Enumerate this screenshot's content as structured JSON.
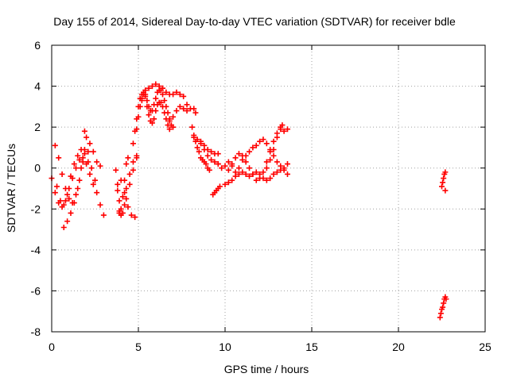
{
  "chart_data": {
    "type": "scatter",
    "title": "Day 155 of 2014, Sidereal Day-to-day VTEC variation (SDTVAR) for receiver bdle",
    "xlabel": "GPS time / hours",
    "ylabel": "SDTVAR / TECUs",
    "xlim": [
      0,
      25
    ],
    "ylim": [
      -8,
      6
    ],
    "xticks": [
      "0",
      "5",
      "10",
      "15",
      "20",
      "25"
    ],
    "yticks": [
      "-8",
      "-6",
      "-4",
      "-2",
      "0",
      "2",
      "4",
      "6"
    ],
    "grid": true,
    "marker": "+",
    "color": "#ff0000",
    "series": [
      {
        "points": [
          [
            0.0,
            -0.5
          ],
          [
            0.2,
            -1.2
          ],
          [
            0.4,
            -1.7
          ],
          [
            0.6,
            -1.9
          ],
          [
            0.8,
            -1.6
          ],
          [
            1.0,
            -1.0
          ],
          [
            1.2,
            -0.5
          ],
          [
            1.4,
            0.0
          ],
          [
            1.6,
            0.4
          ],
          [
            1.8,
            0.5
          ],
          [
            2.0,
            0.2
          ],
          [
            2.2,
            -0.3
          ],
          [
            2.4,
            -0.8
          ],
          [
            2.6,
            -1.2
          ],
          [
            2.8,
            -1.8
          ],
          [
            3.0,
            -2.3
          ],
          [
            0.2,
            1.1
          ],
          [
            0.4,
            0.5
          ],
          [
            0.6,
            -0.3
          ],
          [
            0.8,
            -1.0
          ],
          [
            1.0,
            -1.5
          ],
          [
            1.2,
            -1.7
          ],
          [
            1.4,
            -1.3
          ],
          [
            1.6,
            -0.6
          ],
          [
            1.8,
            0.3
          ],
          [
            1.9,
            0.9
          ],
          [
            2.0,
            1.5
          ],
          [
            2.2,
            1.2
          ],
          [
            2.4,
            0.8
          ],
          [
            2.6,
            0.3
          ],
          [
            2.8,
            0.1
          ],
          [
            0.7,
            -2.9
          ],
          [
            0.9,
            -2.6
          ],
          [
            1.1,
            -2.2
          ],
          [
            1.3,
            -1.7
          ],
          [
            1.5,
            -1.0
          ],
          [
            1.7,
            0.0
          ],
          [
            1.9,
            1.8
          ],
          [
            2.1,
            0.8
          ],
          [
            2.3,
            0.0
          ],
          [
            2.5,
            -0.6
          ],
          [
            0.3,
            -0.9
          ],
          [
            0.5,
            -1.6
          ],
          [
            0.7,
            -1.8
          ],
          [
            0.9,
            -1.3
          ],
          [
            1.1,
            -0.4
          ],
          [
            1.3,
            0.2
          ],
          [
            1.5,
            0.6
          ],
          [
            1.7,
            0.9
          ],
          [
            1.9,
            0.7
          ],
          [
            2.1,
            0.3
          ],
          [
            3.7,
            -0.1
          ],
          [
            3.8,
            -0.8
          ],
          [
            3.9,
            -1.6
          ],
          [
            4.0,
            -2.0
          ],
          [
            4.1,
            -1.4
          ],
          [
            4.2,
            -0.6
          ],
          [
            4.3,
            0.2
          ],
          [
            4.4,
            0.5
          ],
          [
            3.8,
            -1.1
          ],
          [
            3.9,
            -2.1
          ],
          [
            4.0,
            -2.3
          ],
          [
            4.2,
            -1.8
          ],
          [
            4.3,
            -1.0
          ],
          [
            4.5,
            -0.3
          ],
          [
            4.7,
            0.3
          ],
          [
            4.9,
            0.6
          ],
          [
            3.9,
            -2.2
          ],
          [
            4.1,
            -2.2
          ],
          [
            4.3,
            -1.5
          ],
          [
            4.5,
            -0.8
          ],
          [
            4.7,
            -0.1
          ],
          [
            4.9,
            0.5
          ],
          [
            4.0,
            -0.6
          ],
          [
            4.2,
            -1.2
          ],
          [
            4.4,
            -1.9
          ],
          [
            4.6,
            -2.3
          ],
          [
            4.8,
            -2.4
          ],
          [
            4.7,
            1.2
          ],
          [
            4.8,
            1.8
          ],
          [
            4.9,
            2.4
          ],
          [
            5.0,
            3.0
          ],
          [
            5.1,
            3.4
          ],
          [
            5.2,
            3.6
          ],
          [
            5.3,
            3.7
          ],
          [
            5.4,
            3.5
          ],
          [
            5.5,
            3.0
          ],
          [
            5.6,
            2.6
          ],
          [
            5.7,
            2.3
          ],
          [
            5.8,
            2.2
          ],
          [
            5.9,
            2.4
          ],
          [
            6.0,
            2.8
          ],
          [
            6.1,
            3.1
          ],
          [
            6.2,
            3.2
          ],
          [
            6.3,
            3.2
          ],
          [
            6.4,
            3.0
          ],
          [
            6.5,
            2.7
          ],
          [
            6.6,
            2.4
          ],
          [
            6.7,
            2.1
          ],
          [
            6.8,
            1.9
          ],
          [
            4.9,
            1.9
          ],
          [
            5.0,
            2.5
          ],
          [
            5.1,
            3.0
          ],
          [
            5.2,
            3.4
          ],
          [
            5.3,
            3.6
          ],
          [
            5.4,
            3.6
          ],
          [
            5.5,
            3.3
          ],
          [
            5.6,
            3.0
          ],
          [
            5.7,
            2.8
          ],
          [
            5.8,
            2.8
          ],
          [
            5.9,
            3.1
          ],
          [
            6.0,
            3.4
          ],
          [
            6.1,
            3.7
          ],
          [
            6.2,
            3.8
          ],
          [
            6.3,
            3.8
          ],
          [
            6.4,
            3.6
          ],
          [
            6.5,
            3.3
          ],
          [
            6.6,
            3.0
          ],
          [
            6.7,
            2.7
          ],
          [
            6.8,
            2.4
          ],
          [
            6.9,
            2.1
          ],
          [
            7.0,
            2.0
          ],
          [
            5.2,
            3.3
          ],
          [
            5.4,
            3.8
          ],
          [
            5.6,
            3.9
          ],
          [
            5.8,
            4.0
          ],
          [
            6.0,
            4.1
          ],
          [
            6.2,
            4.0
          ],
          [
            6.4,
            3.9
          ],
          [
            6.6,
            3.7
          ],
          [
            6.8,
            3.6
          ],
          [
            7.0,
            3.6
          ],
          [
            7.2,
            3.7
          ],
          [
            7.4,
            3.6
          ],
          [
            7.6,
            3.5
          ],
          [
            7.8,
            3.1
          ],
          [
            6.8,
            2.3
          ],
          [
            7.0,
            2.5
          ],
          [
            7.2,
            2.8
          ],
          [
            7.4,
            3.0
          ],
          [
            7.6,
            2.9
          ],
          [
            7.8,
            2.8
          ],
          [
            8.0,
            2.9
          ],
          [
            8.2,
            2.9
          ],
          [
            8.3,
            2.7
          ],
          [
            8.1,
            2.0
          ],
          [
            8.2,
            1.6
          ],
          [
            8.3,
            1.3
          ],
          [
            8.4,
            1.0
          ],
          [
            8.5,
            0.8
          ],
          [
            8.6,
            0.5
          ],
          [
            8.7,
            0.4
          ],
          [
            8.8,
            0.3
          ],
          [
            8.9,
            0.2
          ],
          [
            9.0,
            0.0
          ],
          [
            9.1,
            -0.1
          ],
          [
            8.2,
            1.5
          ],
          [
            8.4,
            1.4
          ],
          [
            8.6,
            1.3
          ],
          [
            8.8,
            1.1
          ],
          [
            9.0,
            0.9
          ],
          [
            9.2,
            0.8
          ],
          [
            9.4,
            0.7
          ],
          [
            9.6,
            0.7
          ],
          [
            8.6,
            1.2
          ],
          [
            8.8,
            0.9
          ],
          [
            9.0,
            0.6
          ],
          [
            9.2,
            0.4
          ],
          [
            9.4,
            0.3
          ],
          [
            9.6,
            0.2
          ],
          [
            9.3,
            -1.3
          ],
          [
            9.4,
            -1.2
          ],
          [
            9.5,
            -1.1
          ],
          [
            9.6,
            -1.0
          ],
          [
            9.7,
            -0.9
          ],
          [
            9.6,
            0.2
          ],
          [
            9.8,
            0.0
          ],
          [
            10.0,
            0.1
          ],
          [
            10.2,
            0.3
          ],
          [
            10.4,
            0.1
          ],
          [
            10.6,
            -0.2
          ],
          [
            10.8,
            -0.3
          ],
          [
            11.0,
            -0.2
          ],
          [
            11.2,
            -0.3
          ],
          [
            11.4,
            -0.4
          ],
          [
            11.6,
            -0.3
          ],
          [
            11.8,
            -0.2
          ],
          [
            12.0,
            -0.3
          ],
          [
            12.2,
            -0.5
          ],
          [
            12.4,
            -0.6
          ],
          [
            12.6,
            -0.5
          ],
          [
            12.8,
            -0.3
          ],
          [
            13.0,
            -0.2
          ],
          [
            13.2,
            -0.1
          ],
          [
            13.4,
            0.0
          ],
          [
            13.6,
            0.2
          ],
          [
            10.0,
            -0.8
          ],
          [
            10.2,
            -0.7
          ],
          [
            10.4,
            -0.6
          ],
          [
            10.6,
            -0.4
          ],
          [
            10.8,
            0.0
          ],
          [
            11.0,
            0.4
          ],
          [
            11.2,
            0.6
          ],
          [
            11.4,
            0.8
          ],
          [
            11.6,
            1.0
          ],
          [
            11.8,
            1.1
          ],
          [
            12.0,
            1.3
          ],
          [
            12.2,
            1.4
          ],
          [
            12.4,
            1.2
          ],
          [
            12.6,
            0.9
          ],
          [
            12.8,
            0.6
          ],
          [
            13.0,
            0.3
          ],
          [
            13.2,
            0.1
          ],
          [
            13.4,
            -0.1
          ],
          [
            13.6,
            -0.3
          ],
          [
            10.2,
            -0.1
          ],
          [
            10.4,
            0.2
          ],
          [
            10.6,
            0.5
          ],
          [
            10.8,
            0.7
          ],
          [
            11.0,
            0.6
          ],
          [
            11.2,
            0.3
          ],
          [
            11.4,
            0.0
          ],
          [
            11.6,
            -0.3
          ],
          [
            11.8,
            -0.6
          ],
          [
            12.0,
            -0.5
          ],
          [
            12.2,
            -0.2
          ],
          [
            12.4,
            0.3
          ],
          [
            12.6,
            0.8
          ],
          [
            12.8,
            1.3
          ],
          [
            13.0,
            1.7
          ],
          [
            13.2,
            1.9
          ],
          [
            13.4,
            1.8
          ],
          [
            13.6,
            1.9
          ],
          [
            12.4,
            0.0
          ],
          [
            12.6,
            0.4
          ],
          [
            12.8,
            0.9
          ],
          [
            13.0,
            1.5
          ],
          [
            13.2,
            2.0
          ],
          [
            13.3,
            2.1
          ],
          [
            22.4,
            -7.3
          ],
          [
            22.45,
            -7.1
          ],
          [
            22.5,
            -6.9
          ],
          [
            22.55,
            -6.8
          ],
          [
            22.6,
            -6.6
          ],
          [
            22.65,
            -6.4
          ],
          [
            22.7,
            -6.3
          ],
          [
            22.75,
            -6.4
          ],
          [
            22.5,
            -0.9
          ],
          [
            22.55,
            -0.7
          ],
          [
            22.6,
            -0.5
          ],
          [
            22.65,
            -0.3
          ],
          [
            22.7,
            -0.2
          ],
          [
            22.7,
            -1.1
          ]
        ]
      }
    ]
  }
}
